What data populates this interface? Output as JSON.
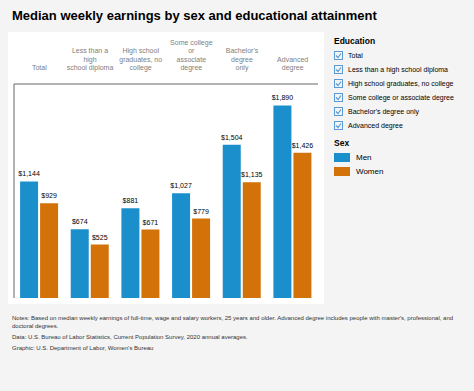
{
  "chart_data": {
    "type": "bar",
    "title": "Median weekly earnings by sex and educational attainment",
    "categories": [
      "Total",
      "Less than a high\nschool diploma",
      "High school\ngraduates, no college",
      "Some college or\nassociate degree",
      "Bachelor's degree\nonly",
      "Advanced degree"
    ],
    "series": [
      {
        "name": "Men",
        "color": "#1A8FCB",
        "values": [
          1144,
          674,
          881,
          1027,
          1504,
          1890
        ],
        "value_labels": [
          "$1,144",
          "$674",
          "$881",
          "$1,027",
          "$1,504",
          "$1,890"
        ]
      },
      {
        "name": "Women",
        "color": "#D4720A",
        "values": [
          929,
          525,
          671,
          779,
          1135,
          1426
        ],
        "value_labels": [
          "$929",
          "$525",
          "$671",
          "$779",
          "$1,135",
          "$1,426"
        ]
      }
    ],
    "ylim": [
      0,
      2100
    ],
    "grid": false,
    "legend": "right",
    "data_labels": true,
    "tick_labels": "x",
    "legend_titles": [
      "Education",
      "Sex"
    ],
    "category_legend": [
      "Total",
      "Less than a high school diploma",
      "High school graduates, no college",
      "Some college or associate degree",
      "Bachelor's degree only",
      "Advanced degree"
    ],
    "annotations": [
      "Notes:  Based on median weekly earnings of full-time, wage and salary workers, 25 years and older. Advanced degree includes people with master's, professional, and doctoral degrees.",
      "Data: U.S. Bureau of Labor Statistics, Current Population Survey, 2020 annual averages.",
      "Graphic: U.S. Department of Labor, Women's Bureau"
    ]
  }
}
